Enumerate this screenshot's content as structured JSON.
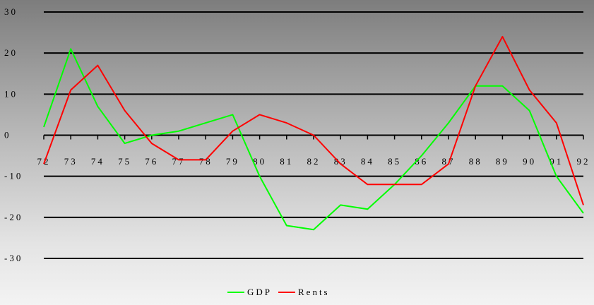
{
  "chart_data": {
    "type": "line",
    "title": "",
    "xlabel": "",
    "ylabel": "",
    "categories": [
      "72",
      "73",
      "74",
      "75",
      "76",
      "77",
      "78",
      "79",
      "80",
      "81",
      "82",
      "83",
      "84",
      "85",
      "86",
      "87",
      "88",
      "89",
      "90",
      "91",
      "92"
    ],
    "series": [
      {
        "name": "GDP",
        "color": "#00ff00",
        "values": [
          2,
          21,
          7,
          -2,
          0,
          1,
          3,
          5,
          -10,
          -22,
          -23,
          -17,
          -18,
          -12,
          -5,
          3,
          12,
          12,
          6,
          -10,
          -19
        ]
      },
      {
        "name": "Rents",
        "color": "#ff0000",
        "values": [
          -7,
          11,
          17,
          6,
          -2,
          -6,
          -6,
          1,
          5,
          3,
          0,
          -7,
          -12,
          -12,
          -12,
          -7,
          12,
          24,
          11,
          3,
          -17
        ]
      }
    ],
    "yticks": [
      30,
      20,
      10,
      0,
      -10,
      -20,
      -30
    ],
    "ytick_labels": [
      "30",
      "20",
      "10",
      "0",
      "-10",
      "-20",
      "-30"
    ],
    "ylim": [
      -30,
      30
    ],
    "grid": true,
    "legend_position": "bottom-center"
  }
}
